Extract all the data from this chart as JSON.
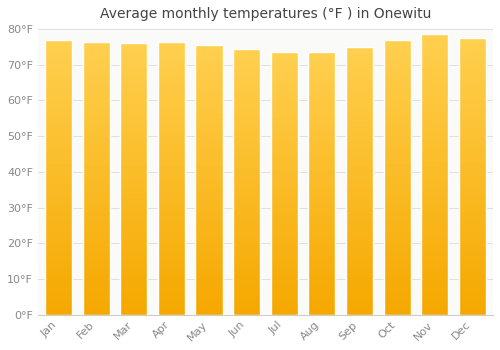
{
  "title": "Average monthly temperatures (°F ) in Onewitu",
  "months": [
    "Jan",
    "Feb",
    "Mar",
    "Apr",
    "May",
    "Jun",
    "Jul",
    "Aug",
    "Sep",
    "Oct",
    "Nov",
    "Dec"
  ],
  "values": [
    77.0,
    76.5,
    76.0,
    76.5,
    75.5,
    74.5,
    73.5,
    73.5,
    75.0,
    77.0,
    78.5,
    77.5
  ],
  "bar_color_light": "#FFD04A",
  "bar_color_dark": "#F5A800",
  "background_color": "#FFFFFF",
  "plot_bg_color": "#FAFAF8",
  "ylim": [
    0,
    80
  ],
  "yticks": [
    0,
    10,
    20,
    30,
    40,
    50,
    60,
    70,
    80
  ],
  "ytick_labels": [
    "0°F",
    "10°F",
    "20°F",
    "30°F",
    "40°F",
    "50°F",
    "60°F",
    "70°F",
    "80°F"
  ],
  "grid_color": "#E0E0E0",
  "title_fontsize": 10,
  "tick_fontsize": 8,
  "font_color": "#888888",
  "title_color": "#444444"
}
